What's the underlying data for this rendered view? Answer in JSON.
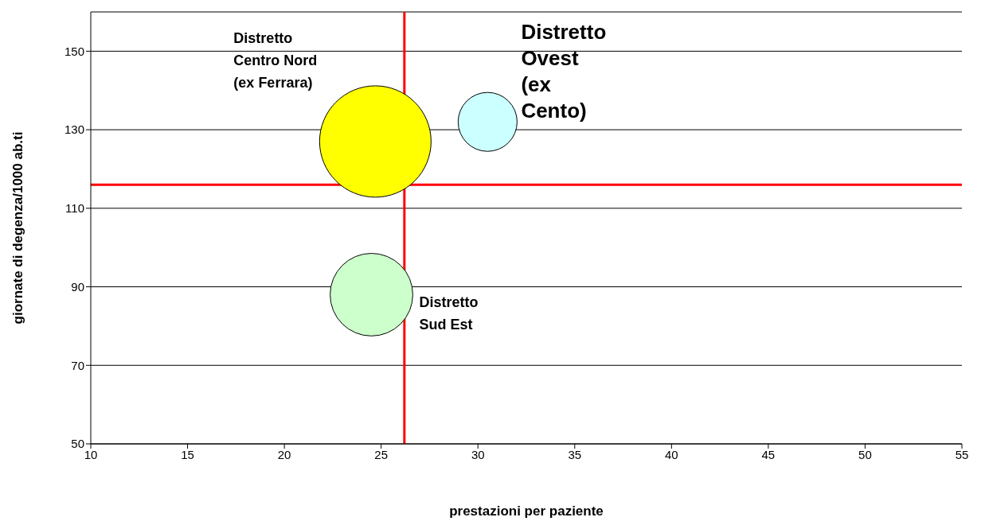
{
  "chart_data": {
    "type": "bubble",
    "xlabel": "prestazioni per paziente",
    "ylabel": "giornate di degenza/1000 ab.ti",
    "xlim": [
      10,
      55
    ],
    "xticks": [
      10,
      15,
      20,
      25,
      30,
      35,
      40,
      45,
      50,
      55
    ],
    "ylim": [
      50,
      160
    ],
    "yticks": [
      50,
      70,
      90,
      110,
      130,
      150
    ],
    "grid": "y",
    "legend": false,
    "series": [
      {
        "name": "Distretto Centro Nord (ex Ferrara)",
        "color": "#ffff00",
        "x": [
          24.7
        ],
        "values": [
          127
        ],
        "sizes": [
          1
        ]
      },
      {
        "name": "Distretto Ovest (ex Cento)",
        "color": "#ccffff",
        "x": [
          30.5
        ],
        "values": [
          132
        ],
        "sizes": [
          0.28
        ]
      },
      {
        "name": "Distretto Sud Est",
        "color": "#ccffcc",
        "x": [
          24.5
        ],
        "values": [
          88
        ],
        "sizes": [
          0.55
        ]
      }
    ],
    "ref_lines": [
      {
        "axis": "x",
        "value": 26.2,
        "color": "#ff0000"
      },
      {
        "axis": "y",
        "value": 116,
        "color": "#ff0000"
      }
    ]
  }
}
